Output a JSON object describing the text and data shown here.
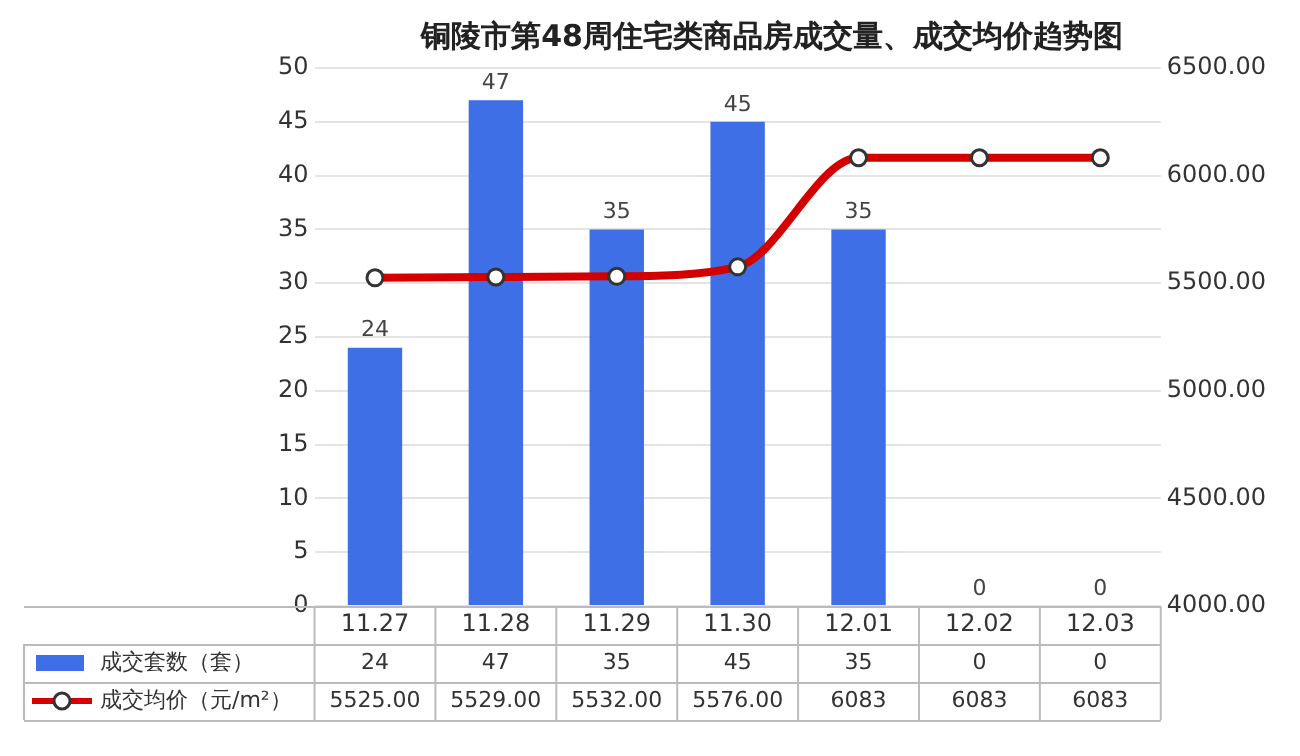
{
  "chart_data": {
    "type": "bar",
    "title": "铜陵市第48周住宅类商品房成交量、成交均价趋势图",
    "categories": [
      "11.27",
      "11.28",
      "11.29",
      "11.30",
      "12.01",
      "12.02",
      "12.03"
    ],
    "series": [
      {
        "name": "成交套数（套）",
        "color": "#3f6fe6",
        "values": [
          24,
          47,
          35,
          45,
          35,
          0,
          0
        ],
        "value_labels": [
          "24",
          "47",
          "35",
          "45",
          "35",
          "0",
          "0"
        ]
      },
      {
        "name": "成交均价（元/m²）",
        "type": "line",
        "axis": "y2",
        "color": "#d40000",
        "marker": "circle",
        "values": [
          5525,
          5529,
          5532,
          5576,
          6083,
          6083,
          6083
        ],
        "value_labels": [
          "5525.00",
          "5529.00",
          "5532.00",
          "5576.00",
          "6083",
          "6083",
          "6083"
        ]
      }
    ],
    "ylim": [
      0,
      50
    ],
    "yticks": [
      0,
      5,
      10,
      15,
      20,
      25,
      30,
      35,
      40,
      45,
      50
    ],
    "y2lim": [
      4000,
      6500
    ],
    "y2ticks": [
      {
        "value": 4000,
        "label": "4000.00"
      },
      {
        "value": 4500,
        "label": "4500.00"
      },
      {
        "value": 5000,
        "label": "5000.00"
      },
      {
        "value": 5500,
        "label": "5500.00"
      },
      {
        "value": 6000,
        "label": "6000.00"
      },
      {
        "value": 6500,
        "label": "6500.00"
      }
    ],
    "grid": "y",
    "legend": "bottom"
  }
}
